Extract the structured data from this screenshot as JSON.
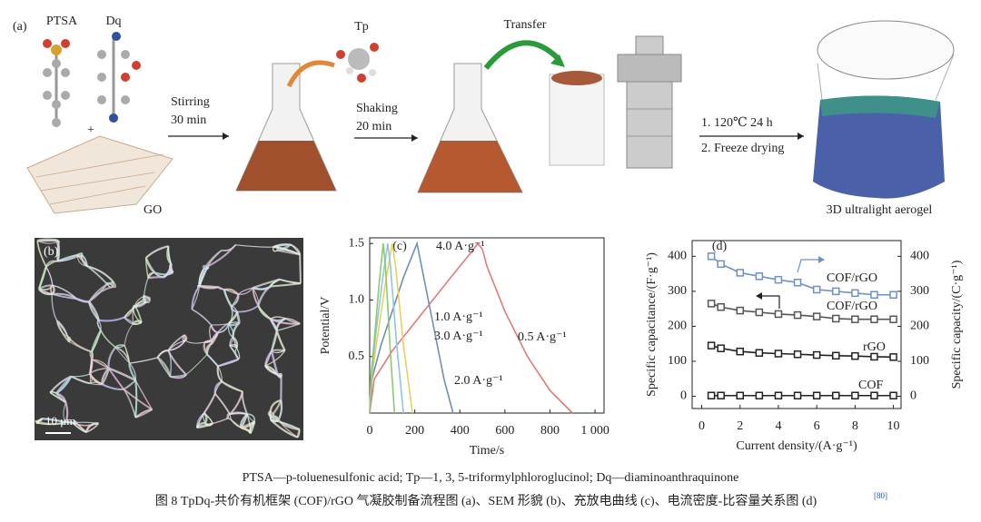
{
  "figure": {
    "panel_a": {
      "label": "(a)",
      "ptsa": "PTSA",
      "dq": "Dq",
      "plus": "+",
      "go": "GO",
      "tp": "Tp",
      "step1": [
        "Stirring",
        "30 min"
      ],
      "step2": [
        "Shaking",
        "20 min"
      ],
      "transfer": "Transfer",
      "step3": [
        "1. 120℃ 24 h",
        "2. Freeze drying"
      ],
      "product": "3D ultralight aerogel"
    },
    "panel_b": {
      "label": "(b)",
      "scale_bar": "10 μm"
    },
    "caption": {
      "abbreviations": "PTSA—p-toluenesulfonic acid; Tp—1, 3, 5-triformylphloroglucinol; Dq—diaminoanthraquinone",
      "title": "图 8  TpDq-共价有机框架 (COF)/rGO 气凝胶制备流程图 (a)、SEM 形貌 (b)、充放电曲线 (c)、电流密度-比容量关系图 (d)",
      "reference": "[80]"
    }
  },
  "chart_data": [
    {
      "type": "line",
      "label": "(c)",
      "x_label": "Time/s",
      "y_label": "Potential/V",
      "xlim": [
        0,
        1040
      ],
      "ylim": [
        0,
        1.55
      ],
      "xticks": [
        0,
        200,
        400,
        600,
        800,
        {
          "value": 1000,
          "label": "1 000"
        }
      ],
      "yticks": [
        0.5,
        {
          "value": 1,
          "label": "1.0"
        },
        1.5
      ],
      "series": [
        {
          "name": "0.5 A·g⁻¹",
          "color": "#e07b7b",
          "x": [
            0,
            20,
            100,
            200,
            300,
            400,
            450,
            480,
            500,
            520,
            600,
            700,
            800,
            900
          ],
          "values": [
            0,
            0.3,
            0.55,
            0.8,
            1.05,
            1.3,
            1.42,
            1.5,
            1.45,
            1.3,
            0.9,
            0.5,
            0.2,
            0
          ]
        },
        {
          "name": "1.0 A·g⁻¹",
          "color": "#6f8fb8",
          "x": [
            0,
            10,
            50,
            100,
            150,
            210,
            230,
            280,
            330,
            370
          ],
          "values": [
            0,
            0.3,
            0.6,
            0.9,
            1.2,
            1.5,
            1.3,
            0.8,
            0.3,
            0
          ]
        },
        {
          "name": "2.0 A·g⁻¹",
          "color": "#e8d060",
          "x": [
            0,
            8,
            40,
            70,
            100,
            115,
            150,
            190
          ],
          "values": [
            0,
            0.3,
            0.75,
            1.15,
            1.5,
            1.3,
            0.6,
            0
          ]
        },
        {
          "name": "3.0 A·g⁻¹",
          "color": "#8fc6e0",
          "x": [
            0,
            6,
            30,
            55,
            80,
            92,
            120,
            150
          ],
          "values": [
            0,
            0.3,
            0.75,
            1.15,
            1.5,
            1.3,
            0.6,
            0
          ]
        },
        {
          "name": "4.0 A·g⁻¹",
          "color": "#90c870",
          "x": [
            0,
            5,
            25,
            42,
            60,
            70,
            90,
            110
          ],
          "values": [
            0,
            0.3,
            0.75,
            1.15,
            1.5,
            1.3,
            0.6,
            0
          ]
        }
      ]
    },
    {
      "type": "line",
      "marker": "square",
      "label": "(d)",
      "x_label": "Current density/(A·g⁻¹)",
      "y_label": "Specific capacitance/(F·g⁻¹)",
      "y2_label": "Specific capacity/(C·g⁻¹)",
      "xlim": [
        -0.5,
        10.4
      ],
      "ylim": [
        -35,
        445
      ],
      "y2lim": [
        -35,
        445
      ],
      "xticks": [
        0,
        2,
        4,
        6,
        8,
        10
      ],
      "yticks": [
        0,
        100,
        200,
        300,
        400
      ],
      "y2ticks": [
        0,
        100,
        200,
        300,
        400
      ],
      "series": [
        {
          "name": "COF/rGO",
          "color": "#6f8fc8",
          "axis": "y2",
          "x": [
            0.5,
            1,
            2,
            3,
            4,
            5,
            6,
            7,
            8,
            9,
            10
          ],
          "values": [
            400,
            378,
            353,
            343,
            333,
            325,
            305,
            300,
            295,
            290,
            290
          ]
        },
        {
          "name": "COF/rGO",
          "color": "#555555",
          "x": [
            0.5,
            1,
            2,
            3,
            4,
            5,
            6,
            7,
            8,
            9,
            10
          ],
          "values": [
            265,
            255,
            245,
            240,
            235,
            232,
            228,
            222,
            220,
            220,
            220
          ]
        },
        {
          "name": "rGO",
          "color": "#222222",
          "x": [
            0.5,
            1,
            2,
            3,
            4,
            5,
            6,
            7,
            8,
            9,
            10
          ],
          "values": [
            145,
            137,
            128,
            124,
            122,
            120,
            118,
            116,
            115,
            113,
            112
          ]
        },
        {
          "name": "COF",
          "color": "#222222",
          "x": [
            0.5,
            1,
            2,
            3,
            4,
            5,
            6,
            7,
            8,
            9,
            10
          ],
          "values": [
            2,
            2,
            2,
            2,
            2,
            2,
            2,
            2,
            2,
            2,
            2
          ]
        }
      ]
    }
  ]
}
